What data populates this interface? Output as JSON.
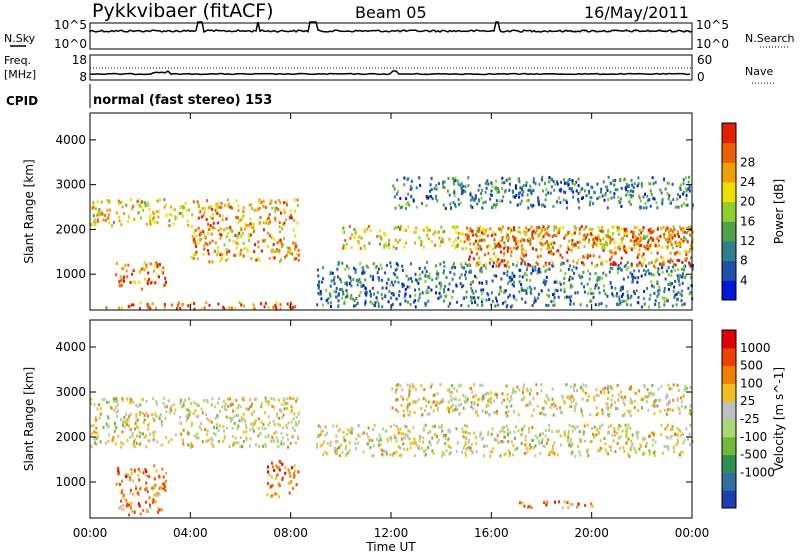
{
  "header": {
    "site": "Pykkvibaer (fitACF)",
    "beam": "Beam 05",
    "date": "16/May/2011"
  },
  "program_label": "normal (fast stereo) 153",
  "meta_panels": {
    "nsky_label": "N.Sky",
    "nsearch_label": "N.Search",
    "freq_label_line1": "Freq.",
    "freq_label_line2": "[MHz]",
    "nave_label": "Nave",
    "cpid_label": "CPID",
    "noise_ticks_left": [
      "10^5",
      "10^0"
    ],
    "noise_ticks_right": [
      "10^5",
      "10^0"
    ],
    "freq_ticks_left": [
      "18",
      "8"
    ],
    "nave_ticks_right": [
      "60",
      "0"
    ]
  },
  "chart_data": [
    {
      "type": "heatmap",
      "name_panel": "power",
      "ylabel": "Slant Range [km]",
      "xlabel": "Time UT",
      "x_ticks": [
        "00:00",
        "04:00",
        "08:00",
        "12:00",
        "16:00",
        "20:00",
        "00:00"
      ],
      "y_ticks": [
        1000,
        2000,
        3000,
        4000
      ],
      "ylim": [
        200,
        4600
      ],
      "xlim_hours": [
        0,
        24
      ],
      "colorbar": {
        "label": "Power [dB]",
        "ticks": [
          "4",
          "8",
          "12",
          "16",
          "20",
          "24",
          "28"
        ],
        "colors": [
          "#0018d8",
          "#1f4fa8",
          "#2f7f8f",
          "#4fa04a",
          "#8ccf2f",
          "#f0e000",
          "#f0a000",
          "#f06000",
          "#e02000"
        ]
      },
      "bands": [
        {
          "t0": 0.0,
          "t1": 8.3,
          "r": [
            250,
            400
          ],
          "level": 7
        },
        {
          "t0": 0.0,
          "t1": 4.0,
          "r": [
            2100,
            2700
          ],
          "level": 5
        },
        {
          "t0": 4.0,
          "t1": 8.3,
          "r": [
            1300,
            2700
          ],
          "level": 6
        },
        {
          "t0": 1.0,
          "t1": 3.0,
          "r": [
            700,
            1300
          ],
          "level": 7
        },
        {
          "t0": 9.0,
          "t1": 24.0,
          "r": [
            300,
            1300
          ],
          "level": 2
        },
        {
          "t0": 10.0,
          "t1": 24.0,
          "r": [
            1600,
            2100
          ],
          "level": 5
        },
        {
          "t0": 15.0,
          "t1": 24.0,
          "r": [
            1200,
            2100
          ],
          "level": 7
        },
        {
          "t0": 12.0,
          "t1": 24.0,
          "r": [
            2500,
            3200
          ],
          "level": 2
        }
      ]
    },
    {
      "type": "heatmap",
      "name_panel": "velocity",
      "ylabel": "Slant Range [km]",
      "xlabel": "Time UT",
      "x_ticks": [
        "00:00",
        "04:00",
        "08:00",
        "12:00",
        "16:00",
        "20:00",
        "00:00"
      ],
      "y_ticks": [
        1000,
        2000,
        3000,
        4000
      ],
      "ylim": [
        200,
        4600
      ],
      "xlim_hours": [
        0,
        24
      ],
      "colorbar": {
        "label": "Velocity [m s^-1]",
        "ticks": [
          "1000",
          "500",
          "100",
          "25",
          "-25",
          "-100",
          "-500",
          "-1000"
        ],
        "colors": [
          "#1f3fb0",
          "#2f70a0",
          "#2f8f50",
          "#6fb838",
          "#a8d878",
          "#c0c0c0",
          "#f0c020",
          "#f08000",
          "#f04000",
          "#e00000"
        ]
      },
      "bands": [
        {
          "t0": 0.0,
          "t1": 8.3,
          "r": [
            1800,
            2900
          ],
          "level": 5
        },
        {
          "t0": 1.0,
          "t1": 3.0,
          "r": [
            300,
            1400
          ],
          "level": 7
        },
        {
          "t0": 7.0,
          "t1": 8.3,
          "r": [
            700,
            1500
          ],
          "level": 7
        },
        {
          "t0": 9.0,
          "t1": 24.0,
          "r": [
            1600,
            2300
          ],
          "level": 5
        },
        {
          "t0": 17.0,
          "t1": 20.0,
          "r": [
            450,
            600
          ],
          "level": 7
        },
        {
          "t0": 12.0,
          "t1": 24.0,
          "r": [
            2500,
            3200
          ],
          "level": 5
        }
      ]
    }
  ]
}
